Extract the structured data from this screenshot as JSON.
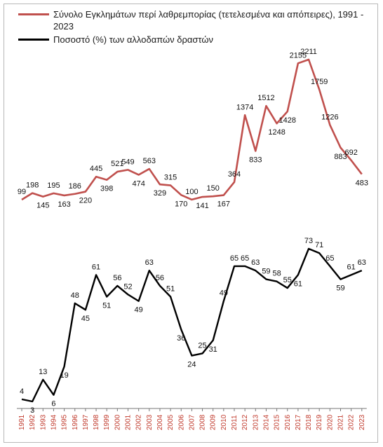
{
  "chart_data": {
    "type": "line",
    "x": [
      1991,
      1992,
      1993,
      1994,
      1995,
      1996,
      1997,
      1998,
      1999,
      2000,
      2001,
      2002,
      2003,
      2004,
      2005,
      2006,
      2007,
      2008,
      2009,
      2010,
      2011,
      2012,
      2013,
      2014,
      2015,
      2016,
      2017,
      2018,
      2019,
      2020,
      2021,
      2022,
      2023
    ],
    "tick_labels": [
      "1991",
      "1992",
      "1993",
      "1994",
      "1995",
      "1996",
      "1997",
      "1998",
      "1999",
      "2000",
      "2001",
      "2002",
      "2003",
      "2004",
      "2005",
      "2006",
      "2007",
      "2008",
      "2009",
      "2010",
      "2011",
      "2012",
      "2013",
      "2014",
      "2015",
      "2016",
      "2017",
      "2018",
      "2019",
      "2020",
      "2021",
      "2022",
      "2023"
    ],
    "series": [
      {
        "name": "Σύνολο Εγκλημάτων περί λαθρεμπορίας (τετελεσμένα και απόπειρες), 1991 - 2023",
        "color": "#c0504d",
        "values": [
          99,
          198,
          145,
          195,
          163,
          186,
          220,
          445,
          398,
          521,
          549,
          474,
          563,
          329,
          315,
          170,
          100,
          141,
          150,
          167,
          364,
          1374,
          833,
          1512,
          1248,
          1428,
          2155,
          2211,
          1759,
          1226,
          883,
          692,
          483
        ]
      },
      {
        "name": "Ποσοστό (%) των αλλοδαπών δραστών",
        "color": "#000000",
        "values": [
          4,
          3,
          13,
          6,
          19,
          48,
          45,
          61,
          51,
          56,
          52,
          49,
          63,
          56,
          51,
          36,
          24,
          25,
          31,
          49,
          65,
          65,
          63,
          59,
          58,
          55,
          61,
          73,
          71,
          65,
          59,
          61,
          63
        ]
      }
    ],
    "grid": false,
    "legend": "top-left"
  }
}
